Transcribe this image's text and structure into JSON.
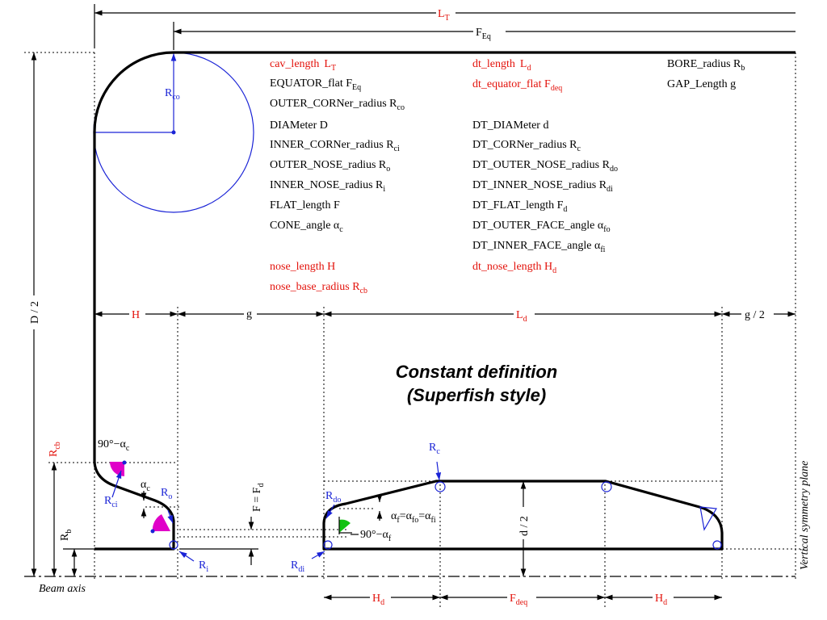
{
  "title": {
    "line1": "Constant definition",
    "line2": "(Superfish style)"
  },
  "params_red_left": {
    "cav_length": "cav_length",
    "cav_length_sym": "L",
    "cav_length_sub": "T",
    "nose_length": "nose_length H",
    "nose_base": "nose_base_radius R",
    "nose_base_sub": "cb"
  },
  "params_left": {
    "equator_flat": "EQUATOR_flat F",
    "equator_flat_sub": "Eq",
    "outer_corner": "OUTER_CORNer_radius R",
    "outer_corner_sub": "co",
    "diameter": "DIAMeter D",
    "inner_corner": "INNER_CORNer_radius R",
    "inner_corner_sub": "ci",
    "outer_nose": "OUTER_NOSE_radius R",
    "outer_nose_sub": "o",
    "inner_nose": "INNER_NOSE_radius R",
    "inner_nose_sub": "i",
    "flat_length": "FLAT_length F",
    "cone_angle": "CONE_angle α",
    "cone_angle_sub": "c"
  },
  "params_red_mid": {
    "dt_length": "dt_length",
    "dt_length_sym": "L",
    "dt_length_sub": "d",
    "dt_equator_flat": "dt_equator_flat F",
    "dt_equator_flat_sub": "deq",
    "dt_nose_length": "dt_nose_length H",
    "dt_nose_length_sub": "d"
  },
  "params_mid": {
    "dt_diameter": "DT_DIAMeter d",
    "dt_corner": "DT_CORNer_radius R",
    "dt_corner_sub": "c",
    "dt_outer_nose": "DT_OUTER_NOSE_radius R",
    "dt_outer_nose_sub": "do",
    "dt_inner_nose": "DT_INNER_NOSE_radius R",
    "dt_inner_nose_sub": "di",
    "dt_flat": "DT_FLAT_length F",
    "dt_flat_sub": "d",
    "dt_outer_face": "DT_OUTER_FACE_angle α",
    "dt_outer_face_sub": "fo",
    "dt_inner_face": "DT_INNER_FACE_angle α",
    "dt_inner_face_sub": "fi"
  },
  "params_right": {
    "bore_radius": "BORE_radius R",
    "bore_radius_sub": "b",
    "gap_length": "GAP_Length g"
  },
  "labels": {
    "LT": "L",
    "LT_sub": "T",
    "FEq": "F",
    "FEq_sub": "Eq",
    "Rco": "R",
    "Rco_sub": "co",
    "D2": "D / 2",
    "H": "H",
    "g": "g",
    "Ld": "L",
    "Ld_sub": "d",
    "g2": "g / 2",
    "Rcb": "R",
    "Rcb_sub": "cb",
    "angle_c_compl": "90°−α",
    "angle_c_compl_sub": "c",
    "alpha_c": "α",
    "alpha_c_sub": "c",
    "Ro": "R",
    "Ro_sub": "o",
    "Rci": "R",
    "Rci_sub": "ci",
    "Rb": "R",
    "Rb_sub": "b",
    "F_eq": "F = F",
    "F_eq_sub": "d",
    "Ri": "R",
    "Ri_sub": "i",
    "Rc": "R",
    "Rc_sub": "c",
    "Rdo": "R",
    "Rdo_sub": "do",
    "alpha_f": "α",
    "alpha_f_sub": "f",
    "eq1": "=α",
    "eq1_sub": "fo",
    "eq2": "=α",
    "eq2_sub": "fi",
    "angle_f_compl": "90°−α",
    "angle_f_compl_sub": "f",
    "d2": "d / 2",
    "Rdi": "R",
    "Rdi_sub": "di",
    "beam_axis": "Beam axis",
    "symmetry_plane": "Vertical symmetry plane",
    "Hd_left": "H",
    "Hd_left_sub": "d",
    "Fdeq": "F",
    "Fdeq_sub": "deq",
    "Hd_right": "H",
    "Hd_right_sub": "d"
  },
  "colors": {
    "red": "#e3120b",
    "blue": "#1a23d6",
    "magenta": "#e000c8",
    "green": "#12c212"
  }
}
